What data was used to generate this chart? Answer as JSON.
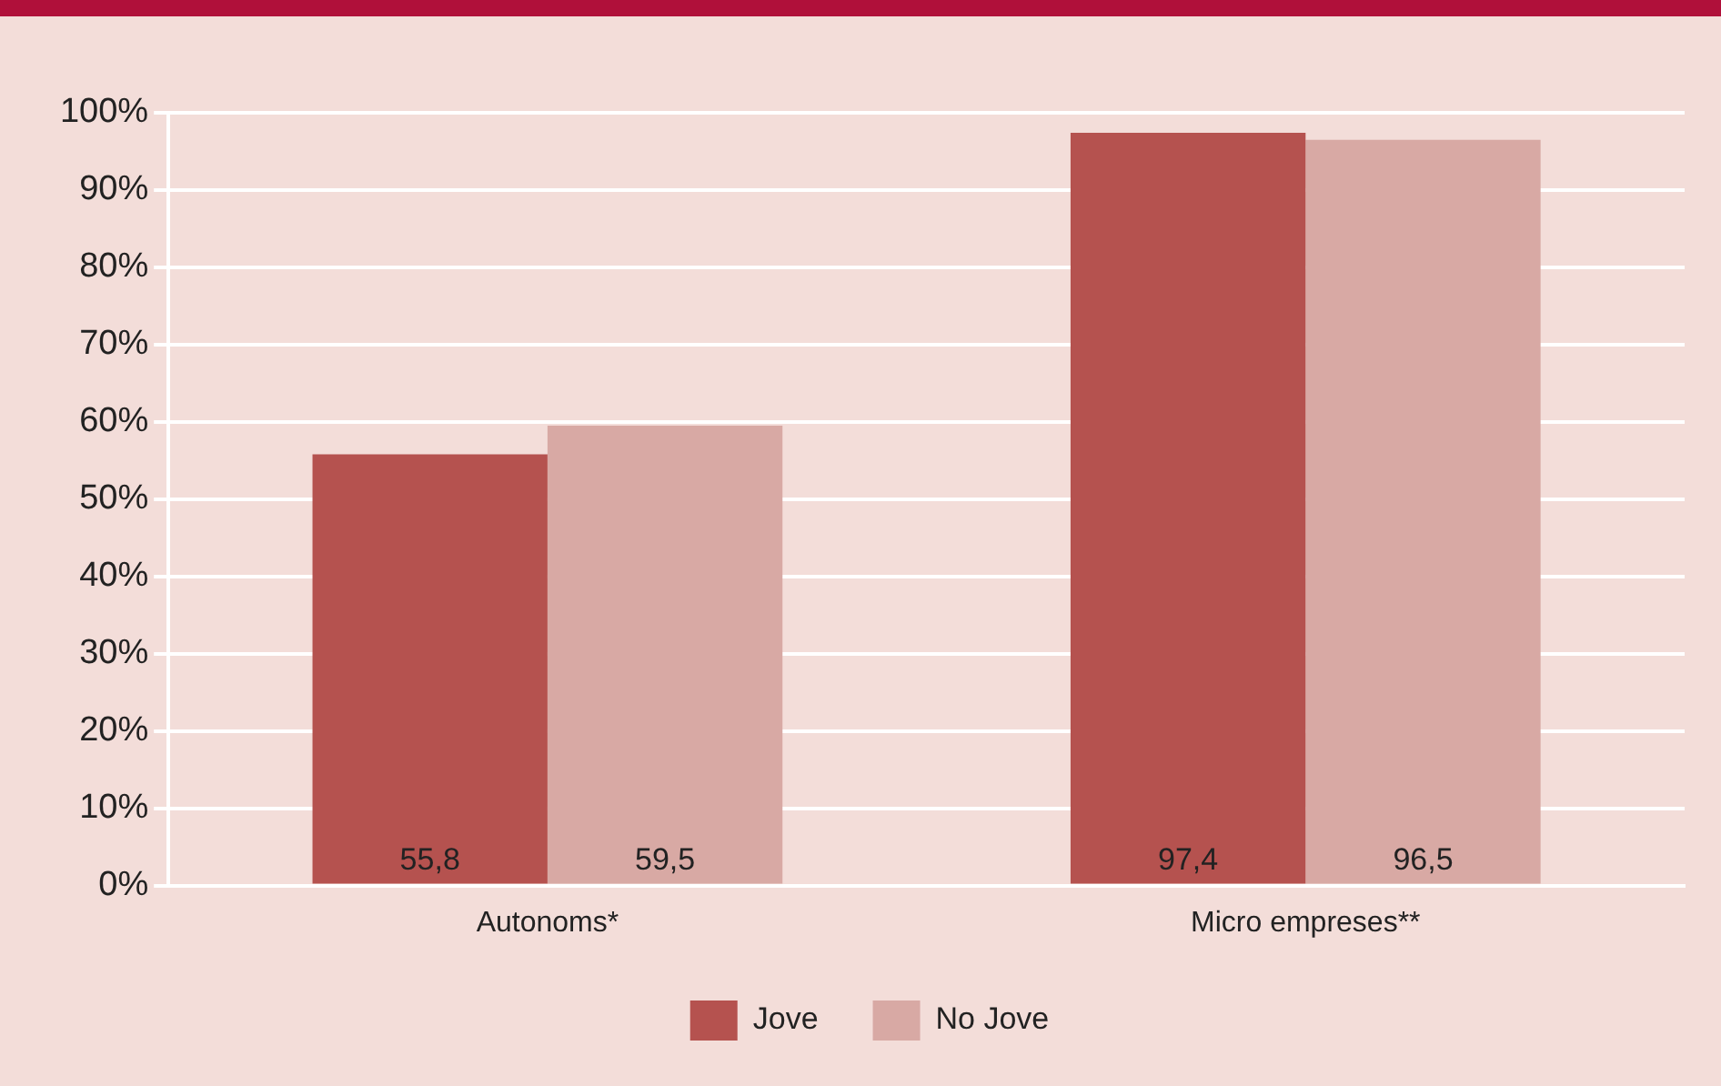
{
  "chart_data": {
    "type": "bar",
    "categories": [
      "Autonoms*",
      "Micro empreses**"
    ],
    "series": [
      {
        "name": "Jove",
        "color": "#b5524f",
        "values": [
          55.8,
          97.4
        ],
        "value_labels": [
          "55,8",
          "97,4"
        ]
      },
      {
        "name": "No Jove",
        "color": "#d8a9a4",
        "values": [
          59.5,
          96.5
        ],
        "value_labels": [
          "59,5",
          "96,5"
        ]
      }
    ],
    "ylim": [
      0,
      100
    ],
    "yticks": [
      {
        "value": 0,
        "label": "0%"
      },
      {
        "value": 10,
        "label": "10%"
      },
      {
        "value": 20,
        "label": "20%"
      },
      {
        "value": 30,
        "label": "30%"
      },
      {
        "value": 40,
        "label": "40%"
      },
      {
        "value": 50,
        "label": "50%"
      },
      {
        "value": 60,
        "label": "60%"
      },
      {
        "value": 70,
        "label": "70%"
      },
      {
        "value": 80,
        "label": "80%"
      },
      {
        "value": 90,
        "label": "90%"
      },
      {
        "value": 100,
        "label": "100%"
      }
    ],
    "grid": "y",
    "legend": "bottom"
  }
}
